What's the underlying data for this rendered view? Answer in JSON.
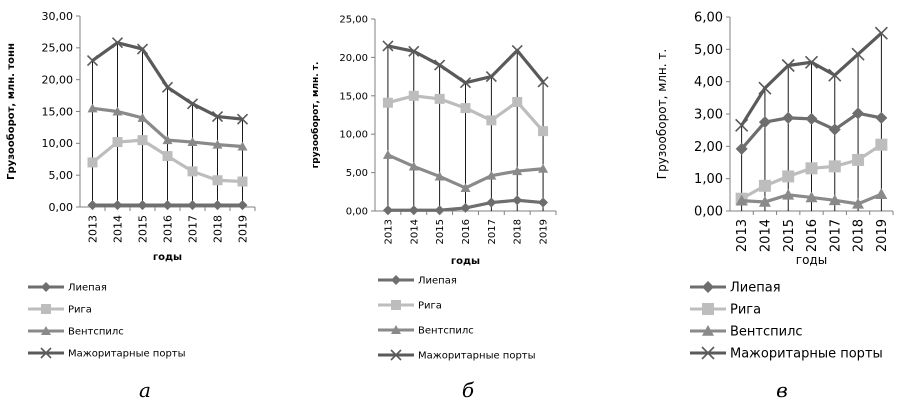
{
  "chart_data": [
    {
      "type": "line",
      "panel_label": "а",
      "ylabel": "Грузооборот, млн. тонн",
      "xlabel": "годы",
      "categories": [
        "2013",
        "2014",
        "2015",
        "2016",
        "2017",
        "2018",
        "2019"
      ],
      "ylim": [
        0,
        30
      ],
      "yticks": [
        "0,00",
        "5,00",
        "10,00",
        "15,00",
        "20,00",
        "25,00",
        "30,00"
      ],
      "grid": false,
      "legend_position": "bottom",
      "series": [
        {
          "name": "Лиепая",
          "marker": "diamond",
          "color": "#6e6e6e",
          "values": [
            0.3,
            0.3,
            0.3,
            0.3,
            0.3,
            0.3,
            0.3
          ]
        },
        {
          "name": "Рига",
          "marker": "square",
          "color": "#bdbdbd",
          "values": [
            7.0,
            10.2,
            10.5,
            8.0,
            5.6,
            4.2,
            4.0
          ]
        },
        {
          "name": "Вентспилс",
          "marker": "triangle",
          "color": "#8a8a8a",
          "values": [
            15.5,
            15.0,
            14.0,
            10.5,
            10.2,
            9.8,
            9.5
          ]
        },
        {
          "name": "Мажоритарные порты",
          "marker": "x",
          "color": "#5a5a5a",
          "values": [
            23.0,
            25.8,
            24.8,
            18.8,
            16.2,
            14.2,
            13.8
          ]
        }
      ]
    },
    {
      "type": "line",
      "panel_label": "б",
      "ylabel": "грузооборот, млн. т.",
      "xlabel": "годы",
      "categories": [
        "2013",
        "2014",
        "2015",
        "2016",
        "2017",
        "2018",
        "2019"
      ],
      "ylim": [
        0,
        25
      ],
      "yticks": [
        "0,00",
        "5,00",
        "10,00",
        "15,00",
        "20,00",
        "25,00"
      ],
      "grid": false,
      "legend_position": "bottom",
      "series": [
        {
          "name": "Лиепая",
          "marker": "diamond",
          "color": "#6e6e6e",
          "values": [
            0.1,
            0.1,
            0.1,
            0.4,
            1.1,
            1.4,
            1.1
          ]
        },
        {
          "name": "Рига",
          "marker": "square",
          "color": "#bdbdbd",
          "values": [
            14.1,
            15.0,
            14.6,
            13.4,
            11.8,
            14.2,
            10.4
          ]
        },
        {
          "name": "Вентспилс",
          "marker": "triangle",
          "color": "#8a8a8a",
          "values": [
            7.3,
            5.8,
            4.5,
            3.0,
            4.6,
            5.2,
            5.5
          ]
        },
        {
          "name": "Мажоритарные порты",
          "marker": "x",
          "color": "#5a5a5a",
          "values": [
            21.5,
            20.8,
            19.0,
            16.7,
            17.5,
            20.9,
            16.8
          ]
        }
      ]
    },
    {
      "type": "line",
      "panel_label": "в",
      "ylabel": "Грузооборот, млн. т.",
      "xlabel": "годы",
      "categories": [
        "2013",
        "2014",
        "2015",
        "2016",
        "2017",
        "2018",
        "2019"
      ],
      "ylim": [
        0,
        6
      ],
      "yticks": [
        "0,00",
        "1,00",
        "2,00",
        "3,00",
        "4,00",
        "5,00",
        "6,00"
      ],
      "grid": false,
      "legend_position": "bottom",
      "series": [
        {
          "name": "Лиепая",
          "marker": "diamond",
          "color": "#6e6e6e",
          "values": [
            1.92,
            2.75,
            2.88,
            2.85,
            2.52,
            3.02,
            2.88
          ]
        },
        {
          "name": "Рига",
          "marker": "square",
          "color": "#bdbdbd",
          "values": [
            0.38,
            0.78,
            1.07,
            1.32,
            1.38,
            1.58,
            2.05
          ]
        },
        {
          "name": "Вентспилс",
          "marker": "triangle",
          "color": "#8a8a8a",
          "values": [
            0.32,
            0.28,
            0.5,
            0.42,
            0.33,
            0.22,
            0.52
          ]
        },
        {
          "name": "Мажоритарные порты",
          "marker": "x",
          "color": "#5a5a5a",
          "values": [
            2.65,
            3.8,
            4.5,
            4.6,
            4.2,
            4.85,
            5.5
          ]
        }
      ]
    }
  ]
}
